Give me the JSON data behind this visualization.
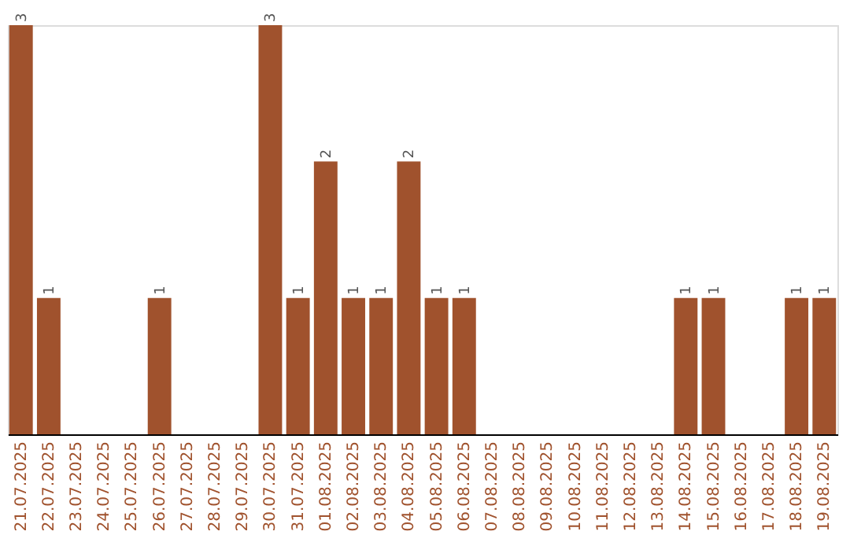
{
  "chart_data": {
    "type": "bar",
    "categories": [
      "21.07.2025",
      "22.07.2025",
      "23.07.2025",
      "24.07.2025",
      "25.07.2025",
      "26.07.2025",
      "27.07.2025",
      "28.07.2025",
      "29.07.2025",
      "30.07.2025",
      "31.07.2025",
      "01.08.2025",
      "02.08.2025",
      "03.08.2025",
      "04.08.2025",
      "05.08.2025",
      "06.08.2025",
      "07.08.2025",
      "08.08.2025",
      "09.08.2025",
      "10.08.2025",
      "11.08.2025",
      "12.08.2025",
      "13.08.2025",
      "14.08.2025",
      "15.08.2025",
      "16.08.2025",
      "17.08.2025",
      "18.08.2025",
      "19.08.2025"
    ],
    "values": [
      3,
      1,
      0,
      0,
      0,
      1,
      0,
      0,
      0,
      3,
      1,
      2,
      1,
      1,
      2,
      1,
      1,
      0,
      0,
      0,
      0,
      0,
      0,
      0,
      1,
      1,
      0,
      0,
      1,
      1
    ],
    "value_labels": [
      "3",
      "1",
      null,
      null,
      null,
      "1",
      null,
      null,
      null,
      "3",
      "1",
      "2",
      "1",
      "1",
      "2",
      "1",
      "1",
      null,
      null,
      null,
      null,
      null,
      null,
      null,
      "1",
      "1",
      null,
      null,
      "1",
      "1"
    ],
    "color": "#a0522d",
    "grid": false
  }
}
